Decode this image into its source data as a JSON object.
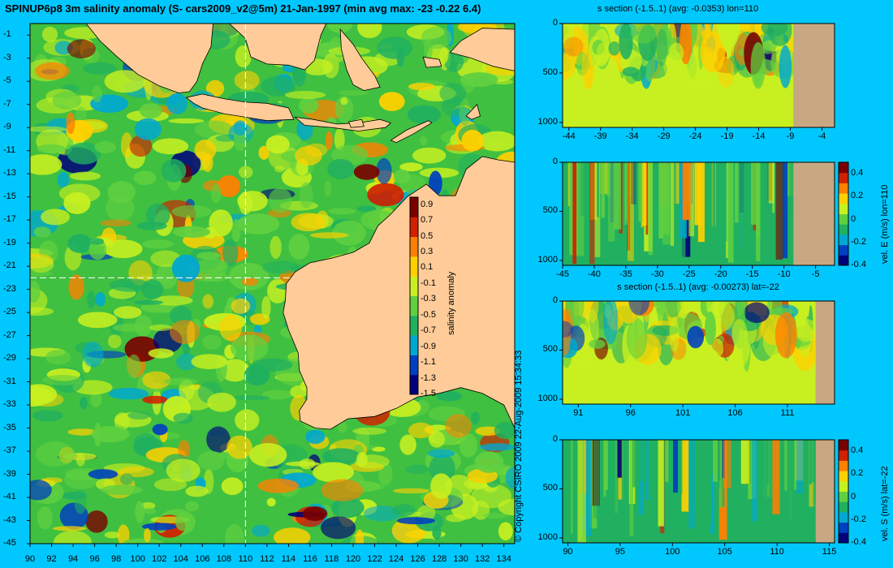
{
  "title": "SPINUP6p8 3m salinity anomaly (S- cars2009_v2@5m) 21-Jan-1997 (min avg max: -23 -0.22 6.4)",
  "copyright": "© Copyright CSIRO 2009   22-Aug-2009 15:34:33",
  "colors": {
    "background": "#00c8ff",
    "land": "#ffcc99",
    "section_land": "#c8a882",
    "ramp": [
      "#00007a",
      "#0040c0",
      "#00a8d0",
      "#20b060",
      "#60d040",
      "#c8f020",
      "#ffd000",
      "#ff8000",
      "#d02000",
      "#7a0000"
    ]
  },
  "chart_data": [
    {
      "type": "heatmap",
      "name": "map",
      "title": "SPINUP6p8 3m salinity anomaly (S- cars2009_v2@5m) 21-Jan-1997 (min avg max: -23 -0.22 6.4)",
      "xlim": [
        90,
        135
      ],
      "ylim": [
        -45,
        0
      ],
      "x_ticks": [
        90,
        92,
        94,
        96,
        98,
        100,
        102,
        104,
        106,
        108,
        110,
        112,
        114,
        116,
        118,
        120,
        122,
        124,
        126,
        128,
        130,
        132,
        134
      ],
      "y_ticks": [
        -1,
        -3,
        -5,
        -7,
        -9,
        -11,
        -13,
        -15,
        -17,
        -19,
        -21,
        -23,
        -25,
        -27,
        -29,
        -31,
        -33,
        -35,
        -37,
        -39,
        -41,
        -43,
        -45
      ],
      "section_lines": {
        "lon": 110,
        "lat": -22
      },
      "colorbar": {
        "label": "salinity anomaly",
        "range": [
          -1.5,
          1.0
        ],
        "ticks": [
          "0.9",
          "0.7",
          "0.5",
          "0.3",
          "0.1",
          "-0.1",
          "-0.3",
          "-0.5",
          "-0.7",
          "-0.9",
          "-1.1",
          "-1.3",
          "-1.5"
        ]
      }
    },
    {
      "type": "heatmap",
      "name": "s-section-lon110",
      "title": "s section (-1.5..1) (avg: -0.0353) lon=110",
      "xlim": [
        -45,
        -2
      ],
      "ylim": [
        1050,
        0
      ],
      "x_ticks": [
        "-44",
        "-39",
        "-34",
        "-29",
        "-24",
        "-19",
        "-14",
        "-9",
        "-4"
      ],
      "y_ticks": [
        "0",
        "500",
        "1000"
      ],
      "land_from_x": -8.5
    },
    {
      "type": "heatmap",
      "name": "velE-section-lon110",
      "title": "",
      "xlim": [
        -45,
        -2
      ],
      "ylim": [
        1050,
        0
      ],
      "x_ticks": [
        "-45",
        "-40",
        "-35",
        "-30",
        "-25",
        "-20",
        "-15",
        "-10",
        "-5"
      ],
      "y_ticks": [
        "0",
        "500",
        "1000"
      ],
      "land_from_x": -8.5,
      "colorbar": {
        "label": "vel. E (m/s) lon=110",
        "range": [
          -0.4,
          0.5
        ],
        "ticks": [
          "0.4",
          "0.2",
          "0",
          "-0.2",
          "-0.4"
        ]
      }
    },
    {
      "type": "heatmap",
      "name": "s-section-lat-22",
      "title": "s section (-1.5..1) (avg: -0.00273) lat=-22",
      "xlim": [
        89.5,
        115.5
      ],
      "ylim": [
        1050,
        0
      ],
      "x_ticks": [
        "91",
        "96",
        "101",
        "106",
        "111"
      ],
      "y_ticks": [
        "0",
        "500",
        "1000"
      ],
      "land_from_x": 113.7
    },
    {
      "type": "heatmap",
      "name": "velS-section-lat-22",
      "title": "",
      "xlim": [
        89.5,
        115.5
      ],
      "ylim": [
        1050,
        0
      ],
      "x_ticks": [
        "90",
        "95",
        "100",
        "105",
        "110",
        "115"
      ],
      "y_ticks": [
        "0",
        "500",
        "1000"
      ],
      "land_from_x": 113.7,
      "colorbar": {
        "label": "vel. S (m/s) lat=-22",
        "range": [
          -0.4,
          0.5
        ],
        "ticks": [
          "0.4",
          "0.2",
          "0",
          "-0.2",
          "-0.4"
        ]
      }
    }
  ]
}
